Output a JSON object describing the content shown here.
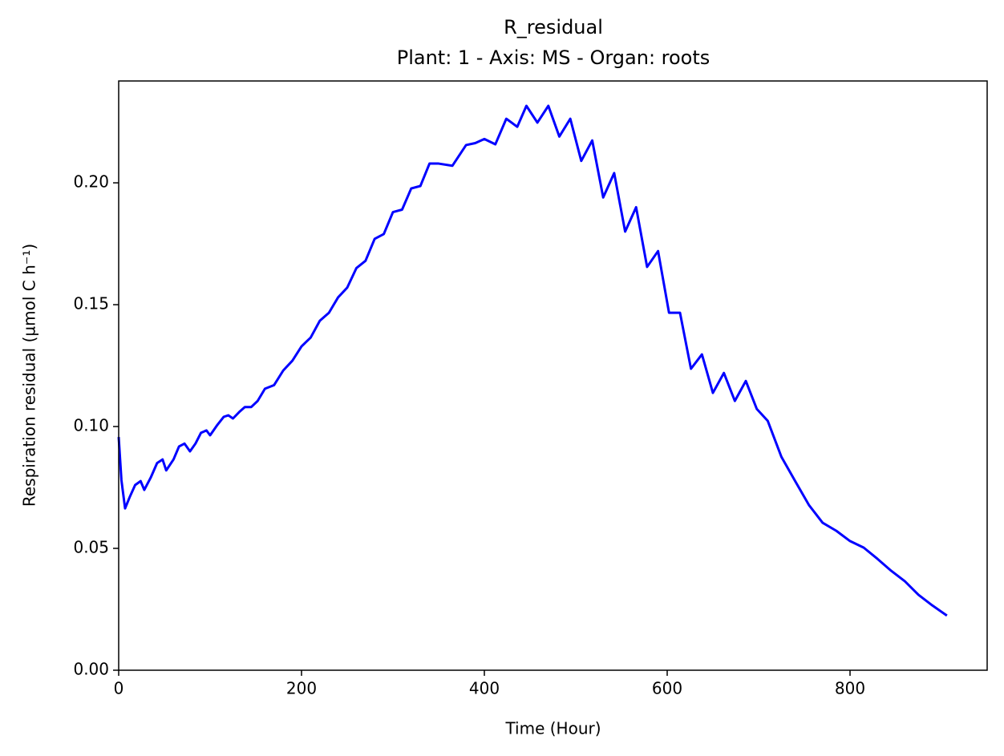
{
  "chart_data": {
    "type": "line",
    "title": "R_residual",
    "subtitle": "Plant: 1 - Axis: MS - Organ: roots",
    "x_label": "Time (Hour)",
    "y_label": "Respiration residual (µmol C h⁻¹)",
    "x": [
      0,
      3,
      7,
      12,
      18,
      24,
      28,
      35,
      42,
      48,
      52,
      60,
      66,
      72,
      78,
      84,
      90,
      96,
      100,
      108,
      115,
      120,
      125,
      132,
      138,
      145,
      152,
      160,
      170,
      180,
      190,
      200,
      210,
      220,
      230,
      240,
      250,
      260,
      270,
      280,
      290,
      300,
      310,
      320,
      330,
      340,
      350,
      365,
      380,
      390,
      400,
      412,
      424,
      436,
      446,
      458,
      470,
      482,
      494,
      506,
      518,
      530,
      542,
      554,
      566,
      578,
      590,
      602,
      614,
      626,
      638,
      650,
      662,
      674,
      686,
      698,
      710,
      725,
      740,
      755,
      770,
      785,
      800,
      815,
      830,
      845,
      860,
      875,
      890,
      906
    ],
    "series": [
      {
        "name": "R_residual",
        "color": "#0000ff",
        "values": [
          0.0957,
          0.078,
          0.0664,
          0.071,
          0.076,
          0.0776,
          0.074,
          0.079,
          0.085,
          0.0865,
          0.082,
          0.0865,
          0.0918,
          0.093,
          0.0898,
          0.093,
          0.0974,
          0.0984,
          0.0964,
          0.1007,
          0.104,
          0.1046,
          0.1033,
          0.106,
          0.108,
          0.108,
          0.1105,
          0.1155,
          0.117,
          0.123,
          0.127,
          0.1329,
          0.1365,
          0.1434,
          0.1467,
          0.153,
          0.157,
          0.165,
          0.168,
          0.177,
          0.179,
          0.188,
          0.189,
          0.1977,
          0.1987,
          0.2079,
          0.2079,
          0.207,
          0.2155,
          0.2163,
          0.218,
          0.2158,
          0.2263,
          0.223,
          0.2316,
          0.2247,
          0.2316,
          0.219,
          0.2263,
          0.209,
          0.2174,
          0.194,
          0.204,
          0.18,
          0.19,
          0.1655,
          0.172,
          0.1467,
          0.1467,
          0.1237,
          0.1296,
          0.1138,
          0.122,
          0.1105,
          0.1187,
          0.1072,
          0.1023,
          0.0875,
          0.0776,
          0.0678,
          0.0605,
          0.0572,
          0.053,
          0.0503,
          0.0457,
          0.0408,
          0.0365,
          0.0309,
          0.0266,
          0.0224
        ]
      }
    ],
    "xlim": [
      0,
      950
    ],
    "ylim": [
      0,
      0.2418
    ],
    "xticks": [
      0,
      200,
      400,
      600,
      800
    ],
    "yticks": [
      {
        "value": 0,
        "label": "0.00"
      },
      {
        "value": 0.05,
        "label": "0.05"
      },
      {
        "value": 0.1,
        "label": "0.10"
      },
      {
        "value": 0.15,
        "label": "0.15"
      },
      {
        "value": 0.2,
        "label": "0.20"
      }
    ],
    "grid": false
  }
}
